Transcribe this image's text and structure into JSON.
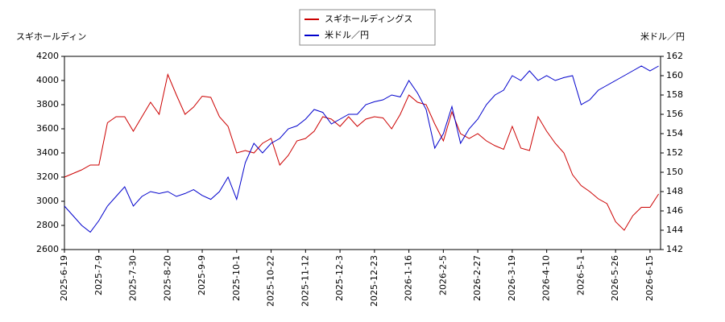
{
  "chart_data": {
    "type": "line",
    "y_label": "スギホールディン",
    "y2_label": "米ドル／円",
    "categories": [
      "2025-6-19",
      null,
      null,
      null,
      "2025-7-9",
      null,
      null,
      null,
      "2025-7-30",
      null,
      null,
      null,
      "2025-8-20",
      null,
      null,
      null,
      "2025-9-9",
      null,
      null,
      null,
      "2025-10-1",
      null,
      null,
      null,
      "2025-10-22",
      null,
      null,
      null,
      "2025-11-12",
      null,
      null,
      null,
      "2025-12-3",
      null,
      null,
      null,
      "2025-12-23",
      null,
      null,
      null,
      "2026-1-16",
      null,
      null,
      null,
      "2026-2-5",
      null,
      null,
      null,
      "2026-2-27",
      null,
      null,
      null,
      "2026-3-19",
      null,
      null,
      null,
      "2026-4-10",
      null,
      null,
      null,
      "2026-5-1",
      null,
      null,
      null,
      "2026-5-26",
      null,
      null,
      null,
      "2026-6-15",
      null
    ],
    "series": [
      {
        "name": "スギホールディングス",
        "color": "#cc0000",
        "axis": "y",
        "values": [
          3200,
          3230,
          3260,
          3300,
          3300,
          3650,
          3700,
          3700,
          3580,
          3700,
          3820,
          3720,
          4050,
          3880,
          3720,
          3780,
          3870,
          3860,
          3700,
          3620,
          3400,
          3420,
          3400,
          3480,
          3520,
          3300,
          3380,
          3500,
          3520,
          3580,
          3700,
          3680,
          3620,
          3700,
          3620,
          3680,
          3700,
          3690,
          3600,
          3720,
          3880,
          3820,
          3800,
          3640,
          3500,
          3740,
          3560,
          3520,
          3560,
          3500,
          3460,
          3430,
          3620,
          3440,
          3420,
          3700,
          3580,
          3480,
          3400,
          3220,
          3130,
          3080,
          3020,
          2980,
          2830,
          2760,
          2880,
          2950,
          2950,
          3060
        ]
      },
      {
        "name": "米ドル／円",
        "color": "#0000cc",
        "axis": "y2",
        "values": [
          146.5,
          145.5,
          144.5,
          143.8,
          145,
          146.5,
          147.5,
          148.5,
          146.5,
          147.5,
          148,
          147.8,
          148,
          147.5,
          147.8,
          148.2,
          147.6,
          147.2,
          148,
          149.5,
          147.2,
          151,
          153,
          152,
          153,
          153.5,
          154.5,
          154.8,
          155.5,
          156.5,
          156.2,
          155,
          155.5,
          156,
          156,
          157,
          157.3,
          157.5,
          158,
          157.8,
          159.5,
          158.2,
          156.5,
          152.5,
          154,
          156.8,
          153,
          154.5,
          155.5,
          157,
          158,
          158.5,
          160,
          159.5,
          160.5,
          159.5,
          160,
          159.5,
          159.8,
          160,
          157,
          157.5,
          158.5,
          159,
          159.5,
          160,
          160.5,
          161,
          160.5,
          161
        ]
      }
    ],
    "ylim": [
      2600,
      4200
    ],
    "yticks": [
      2600,
      2800,
      3000,
      3200,
      3400,
      3600,
      3800,
      4000,
      4200
    ],
    "y2lim": [
      142,
      162
    ],
    "y2ticks": [
      142,
      144,
      146,
      148,
      150,
      152,
      154,
      156,
      158,
      160,
      162
    ],
    "grid": false,
    "legend": "top"
  }
}
